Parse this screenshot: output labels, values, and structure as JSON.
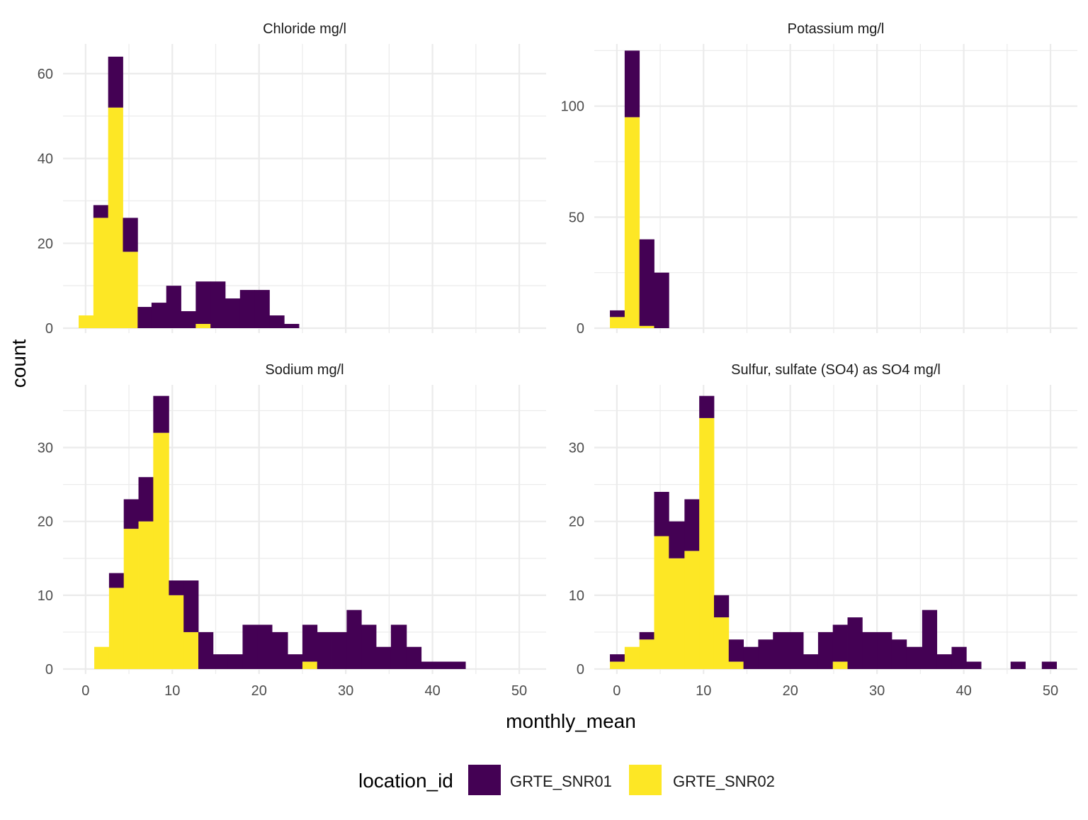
{
  "chart_data": {
    "type": "bar",
    "subtype": "stacked-histogram-facets",
    "xlabel": "monthly_mean",
    "ylabel": "count",
    "legend": {
      "title": "location_id",
      "position": "bottom",
      "entries": [
        {
          "name": "GRTE_SNR01",
          "color": "#440154"
        },
        {
          "name": "GRTE_SNR02",
          "color": "#FDE725"
        }
      ]
    },
    "colors": {
      "GRTE_SNR01": "#440154",
      "GRTE_SNR02": "#FDE725",
      "grid": "#ebebeb",
      "text": "#4d4d4d"
    },
    "grid": true,
    "xlim": [
      -2.6,
      53.1
    ],
    "x_ticks": [
      0,
      10,
      20,
      30,
      40,
      50
    ],
    "x_tick_labels": [
      "0",
      "10",
      "20",
      "30",
      "40",
      "50"
    ],
    "facets": [
      {
        "title": "Chloride mg/l",
        "ylim": [
          0,
          67
        ],
        "y_ticks": [
          0,
          20,
          40,
          60
        ],
        "y_tick_labels": [
          "0",
          "20",
          "40",
          "60"
        ],
        "bins": [
          {
            "x0": -0.8,
            "x1": 0.9,
            "GRTE_SNR02": 3,
            "GRTE_SNR01": 0
          },
          {
            "x0": 0.9,
            "x1": 2.6,
            "GRTE_SNR02": 26,
            "GRTE_SNR01": 3
          },
          {
            "x0": 2.6,
            "x1": 4.3,
            "GRTE_SNR02": 52,
            "GRTE_SNR01": 12
          },
          {
            "x0": 4.3,
            "x1": 6.0,
            "GRTE_SNR02": 18,
            "GRTE_SNR01": 8
          },
          {
            "x0": 6.0,
            "x1": 7.6,
            "GRTE_SNR02": 0,
            "GRTE_SNR01": 5
          },
          {
            "x0": 7.6,
            "x1": 9.3,
            "GRTE_SNR02": 0,
            "GRTE_SNR01": 6
          },
          {
            "x0": 9.3,
            "x1": 11.0,
            "GRTE_SNR02": 0,
            "GRTE_SNR01": 10
          },
          {
            "x0": 11.0,
            "x1": 12.7,
            "GRTE_SNR02": 0,
            "GRTE_SNR01": 4
          },
          {
            "x0": 12.7,
            "x1": 14.4,
            "GRTE_SNR02": 1,
            "GRTE_SNR01": 10
          },
          {
            "x0": 14.4,
            "x1": 16.1,
            "GRTE_SNR02": 0,
            "GRTE_SNR01": 11
          },
          {
            "x0": 16.1,
            "x1": 17.8,
            "GRTE_SNR02": 0,
            "GRTE_SNR01": 7
          },
          {
            "x0": 17.8,
            "x1": 19.5,
            "GRTE_SNR02": 0,
            "GRTE_SNR01": 9
          },
          {
            "x0": 19.5,
            "x1": 21.2,
            "GRTE_SNR02": 0,
            "GRTE_SNR01": 9
          },
          {
            "x0": 21.2,
            "x1": 22.9,
            "GRTE_SNR02": 0,
            "GRTE_SNR01": 3
          },
          {
            "x0": 22.9,
            "x1": 24.6,
            "GRTE_SNR02": 0,
            "GRTE_SNR01": 1
          }
        ]
      },
      {
        "title": "Potassium mg/l",
        "ylim": [
          0,
          128
        ],
        "y_ticks": [
          0,
          50,
          100
        ],
        "y_tick_labels": [
          "0",
          "50",
          "100"
        ],
        "bins": [
          {
            "x0": -0.8,
            "x1": 0.9,
            "GRTE_SNR02": 5,
            "GRTE_SNR01": 3
          },
          {
            "x0": 0.9,
            "x1": 2.6,
            "GRTE_SNR02": 95,
            "GRTE_SNR01": 30
          },
          {
            "x0": 2.6,
            "x1": 4.3,
            "GRTE_SNR02": 1,
            "GRTE_SNR01": 39
          },
          {
            "x0": 4.3,
            "x1": 6.0,
            "GRTE_SNR02": 0,
            "GRTE_SNR01": 25
          }
        ]
      },
      {
        "title": "Sodium mg/l",
        "ylim": [
          0,
          38.5
        ],
        "y_ticks": [
          0,
          10,
          20,
          30
        ],
        "y_tick_labels": [
          "0",
          "10",
          "20",
          "30"
        ],
        "bins": [
          {
            "x0": 1.0,
            "x1": 2.7,
            "GRTE_SNR02": 3,
            "GRTE_SNR01": 0
          },
          {
            "x0": 2.7,
            "x1": 4.4,
            "GRTE_SNR02": 11,
            "GRTE_SNR01": 2
          },
          {
            "x0": 4.4,
            "x1": 6.1,
            "GRTE_SNR02": 19,
            "GRTE_SNR01": 4
          },
          {
            "x0": 6.1,
            "x1": 7.8,
            "GRTE_SNR02": 20,
            "GRTE_SNR01": 6
          },
          {
            "x0": 7.8,
            "x1": 9.6,
            "GRTE_SNR02": 32,
            "GRTE_SNR01": 5
          },
          {
            "x0": 9.6,
            "x1": 11.3,
            "GRTE_SNR02": 10,
            "GRTE_SNR01": 2
          },
          {
            "x0": 11.3,
            "x1": 13.0,
            "GRTE_SNR02": 5,
            "GRTE_SNR01": 7
          },
          {
            "x0": 13.0,
            "x1": 14.7,
            "GRTE_SNR02": 0,
            "GRTE_SNR01": 5
          },
          {
            "x0": 14.7,
            "x1": 16.4,
            "GRTE_SNR02": 0,
            "GRTE_SNR01": 2
          },
          {
            "x0": 16.4,
            "x1": 18.1,
            "GRTE_SNR02": 0,
            "GRTE_SNR01": 2
          },
          {
            "x0": 18.1,
            "x1": 19.8,
            "GRTE_SNR02": 0,
            "GRTE_SNR01": 6
          },
          {
            "x0": 19.8,
            "x1": 21.5,
            "GRTE_SNR02": 0,
            "GRTE_SNR01": 6
          },
          {
            "x0": 21.5,
            "x1": 23.3,
            "GRTE_SNR02": 0,
            "GRTE_SNR01": 5
          },
          {
            "x0": 23.3,
            "x1": 25.0,
            "GRTE_SNR02": 0,
            "GRTE_SNR01": 2
          },
          {
            "x0": 25.0,
            "x1": 26.7,
            "GRTE_SNR02": 1,
            "GRTE_SNR01": 5
          },
          {
            "x0": 26.7,
            "x1": 28.4,
            "GRTE_SNR02": 0,
            "GRTE_SNR01": 5
          },
          {
            "x0": 28.4,
            "x1": 30.1,
            "GRTE_SNR02": 0,
            "GRTE_SNR01": 5
          },
          {
            "x0": 30.1,
            "x1": 31.8,
            "GRTE_SNR02": 0,
            "GRTE_SNR01": 8
          },
          {
            "x0": 31.8,
            "x1": 33.5,
            "GRTE_SNR02": 0,
            "GRTE_SNR01": 6
          },
          {
            "x0": 33.5,
            "x1": 35.2,
            "GRTE_SNR02": 0,
            "GRTE_SNR01": 3
          },
          {
            "x0": 35.2,
            "x1": 37.0,
            "GRTE_SNR02": 0,
            "GRTE_SNR01": 6
          },
          {
            "x0": 37.0,
            "x1": 38.7,
            "GRTE_SNR02": 0,
            "GRTE_SNR01": 3
          },
          {
            "x0": 38.7,
            "x1": 40.4,
            "GRTE_SNR02": 0,
            "GRTE_SNR01": 1
          },
          {
            "x0": 40.4,
            "x1": 42.1,
            "GRTE_SNR02": 0,
            "GRTE_SNR01": 1
          },
          {
            "x0": 42.1,
            "x1": 43.8,
            "GRTE_SNR02": 0,
            "GRTE_SNR01": 1
          }
        ]
      },
      {
        "title": "Sulfur, sulfate (SO4) as SO4 mg/l",
        "ylim": [
          0,
          38.5
        ],
        "y_ticks": [
          0,
          10,
          20,
          30
        ],
        "y_tick_labels": [
          "0",
          "10",
          "20",
          "30"
        ],
        "bins": [
          {
            "x0": -0.8,
            "x1": 0.9,
            "GRTE_SNR02": 1,
            "GRTE_SNR01": 1
          },
          {
            "x0": 0.9,
            "x1": 2.6,
            "GRTE_SNR02": 3,
            "GRTE_SNR01": 0
          },
          {
            "x0": 2.6,
            "x1": 4.3,
            "GRTE_SNR02": 4,
            "GRTE_SNR01": 1
          },
          {
            "x0": 4.3,
            "x1": 6.0,
            "GRTE_SNR02": 18,
            "GRTE_SNR01": 6
          },
          {
            "x0": 6.0,
            "x1": 7.8,
            "GRTE_SNR02": 15,
            "GRTE_SNR01": 5
          },
          {
            "x0": 7.8,
            "x1": 9.5,
            "GRTE_SNR02": 16,
            "GRTE_SNR01": 7
          },
          {
            "x0": 9.5,
            "x1": 11.2,
            "GRTE_SNR02": 34,
            "GRTE_SNR01": 3
          },
          {
            "x0": 11.2,
            "x1": 12.9,
            "GRTE_SNR02": 7,
            "GRTE_SNR01": 3
          },
          {
            "x0": 12.9,
            "x1": 14.6,
            "GRTE_SNR02": 1,
            "GRTE_SNR01": 3
          },
          {
            "x0": 14.6,
            "x1": 16.3,
            "GRTE_SNR02": 0,
            "GRTE_SNR01": 3
          },
          {
            "x0": 16.3,
            "x1": 18.0,
            "GRTE_SNR02": 0,
            "GRTE_SNR01": 4
          },
          {
            "x0": 18.0,
            "x1": 19.7,
            "GRTE_SNR02": 0,
            "GRTE_SNR01": 5
          },
          {
            "x0": 19.7,
            "x1": 21.5,
            "GRTE_SNR02": 0,
            "GRTE_SNR01": 5
          },
          {
            "x0": 21.5,
            "x1": 23.2,
            "GRTE_SNR02": 0,
            "GRTE_SNR01": 2
          },
          {
            "x0": 23.2,
            "x1": 24.9,
            "GRTE_SNR02": 0,
            "GRTE_SNR01": 5
          },
          {
            "x0": 24.9,
            "x1": 26.6,
            "GRTE_SNR02": 1,
            "GRTE_SNR01": 5
          },
          {
            "x0": 26.6,
            "x1": 28.3,
            "GRTE_SNR02": 0,
            "GRTE_SNR01": 7
          },
          {
            "x0": 28.3,
            "x1": 30.0,
            "GRTE_SNR02": 0,
            "GRTE_SNR01": 5
          },
          {
            "x0": 30.0,
            "x1": 31.7,
            "GRTE_SNR02": 0,
            "GRTE_SNR01": 5
          },
          {
            "x0": 31.7,
            "x1": 33.4,
            "GRTE_SNR02": 0,
            "GRTE_SNR01": 4
          },
          {
            "x0": 33.4,
            "x1": 35.2,
            "GRTE_SNR02": 0,
            "GRTE_SNR01": 3
          },
          {
            "x0": 35.2,
            "x1": 36.9,
            "GRTE_SNR02": 0,
            "GRTE_SNR01": 8
          },
          {
            "x0": 36.9,
            "x1": 38.6,
            "GRTE_SNR02": 0,
            "GRTE_SNR01": 2
          },
          {
            "x0": 38.6,
            "x1": 40.3,
            "GRTE_SNR02": 0,
            "GRTE_SNR01": 3
          },
          {
            "x0": 40.3,
            "x1": 42.0,
            "GRTE_SNR02": 0,
            "GRTE_SNR01": 1
          },
          {
            "x0": 45.4,
            "x1": 47.1,
            "GRTE_SNR02": 0,
            "GRTE_SNR01": 1
          },
          {
            "x0": 49.0,
            "x1": 50.7,
            "GRTE_SNR02": 0,
            "GRTE_SNR01": 1
          }
        ]
      }
    ]
  }
}
